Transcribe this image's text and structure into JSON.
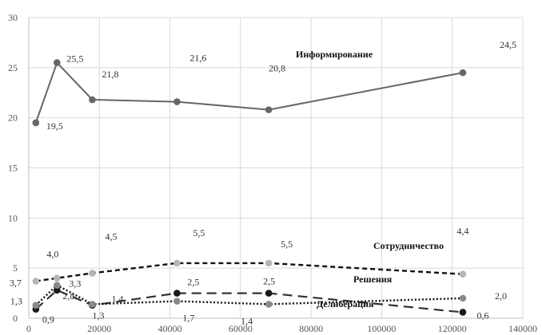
{
  "chart_data": {
    "type": "line",
    "title": "",
    "xlabel": "",
    "ylabel": "",
    "xlim": [
      0,
      140000
    ],
    "ylim": [
      0,
      30
    ],
    "x_ticks": [
      "0",
      "20000",
      "40000",
      "60000",
      "80000",
      "100000",
      "120000",
      "140000"
    ],
    "y_ticks": [
      "0",
      "5",
      "10",
      "15",
      "20",
      "25",
      "30"
    ],
    "grid": true,
    "legend": "none",
    "series": [
      {
        "name": "Информирование",
        "color": "#666666",
        "marker_color": "#666666",
        "line_style": "solid",
        "points": [
          {
            "x": 2000,
            "y": 19.5,
            "label": "19,5"
          },
          {
            "x": 8000,
            "y": 25.5,
            "label": "25,5"
          },
          {
            "x": 18000,
            "y": 21.8,
            "label": "21,8"
          },
          {
            "x": 42000,
            "y": 21.6,
            "label": "21,6"
          },
          {
            "x": 68000,
            "y": 20.8,
            "label": "20,8"
          },
          {
            "x": 123000,
            "y": 24.5,
            "label": "24,5"
          }
        ]
      },
      {
        "name": "Сотрудничество",
        "color": "#111111",
        "marker_color": "#b5b5b5",
        "line_style": "dashed",
        "points": [
          {
            "x": 2000,
            "y": 3.7,
            "label": "3,7"
          },
          {
            "x": 8000,
            "y": 4.0,
            "label": "4,0"
          },
          {
            "x": 18000,
            "y": 4.5,
            "label": "4,5"
          },
          {
            "x": 42000,
            "y": 5.5,
            "label": "5,5"
          },
          {
            "x": 68000,
            "y": 5.5,
            "label": "5,5"
          },
          {
            "x": 123000,
            "y": 4.4,
            "label": "4,4"
          }
        ]
      },
      {
        "name": "Решения",
        "color": "#333333",
        "marker_color": "#1a1a1a",
        "line_style": "longdash",
        "points": [
          {
            "x": 2000,
            "y": 0.9,
            "label": "0,9"
          },
          {
            "x": 8000,
            "y": 2.8,
            "label": "2,8"
          },
          {
            "x": 18000,
            "y": 1.3,
            "label": "1,3"
          },
          {
            "x": 42000,
            "y": 2.5,
            "label": "2,5"
          },
          {
            "x": 68000,
            "y": 2.5,
            "label": "2,5"
          },
          {
            "x": 123000,
            "y": 0.6,
            "label": "0,6"
          }
        ]
      },
      {
        "name": "Делиберация",
        "color": "#111111",
        "marker_color": "#8a8a8a",
        "line_style": "dotted",
        "points": [
          {
            "x": 2000,
            "y": 1.3,
            "label": "1,3"
          },
          {
            "x": 8000,
            "y": 3.3,
            "label": "3,3"
          },
          {
            "x": 18000,
            "y": 1.4,
            "label": "1,4"
          },
          {
            "x": 42000,
            "y": 1.7,
            "label": "1,7"
          },
          {
            "x": 68000,
            "y": 1.4,
            "label": "1,4"
          },
          {
            "x": 123000,
            "y": 2.0,
            "label": "2,0"
          }
        ]
      }
    ]
  }
}
